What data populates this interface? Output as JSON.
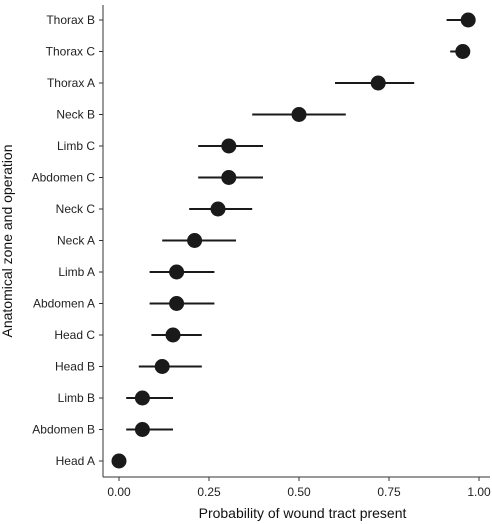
{
  "chart_data": {
    "type": "scatter",
    "subtype": "dot-and-interval",
    "title": "",
    "xlabel": "Probability of wound tract present",
    "ylabel": "Anatomical zone and operation",
    "xlim": [
      0,
      1
    ],
    "xticks": [
      0.0,
      0.25,
      0.5,
      0.75,
      1.0
    ],
    "xtick_labels": [
      "0.00",
      "0.25",
      "0.50",
      "0.75",
      "1.00"
    ],
    "grid": false,
    "legend": "none",
    "colors": {
      "point": "#1a1a1a",
      "interval": "#1a1a1a",
      "axis": "#333333"
    },
    "categories": [
      "Thorax B",
      "Thorax C",
      "Thorax A",
      "Neck B",
      "Limb C",
      "Abdomen C",
      "Neck C",
      "Neck A",
      "Limb A",
      "Abdomen A",
      "Head C",
      "Head B",
      "Limb B",
      "Abdomen B",
      "Head A"
    ],
    "values": [
      0.97,
      0.955,
      0.72,
      0.5,
      0.305,
      0.305,
      0.275,
      0.21,
      0.16,
      0.16,
      0.15,
      0.12,
      0.065,
      0.065,
      0.0
    ],
    "lower": [
      0.91,
      0.92,
      0.6,
      0.37,
      0.22,
      0.22,
      0.195,
      0.12,
      0.085,
      0.085,
      0.09,
      0.055,
      0.02,
      0.02,
      0.0
    ],
    "upper": [
      0.99,
      0.975,
      0.82,
      0.63,
      0.4,
      0.4,
      0.37,
      0.325,
      0.265,
      0.265,
      0.23,
      0.23,
      0.15,
      0.15,
      0.0
    ]
  }
}
